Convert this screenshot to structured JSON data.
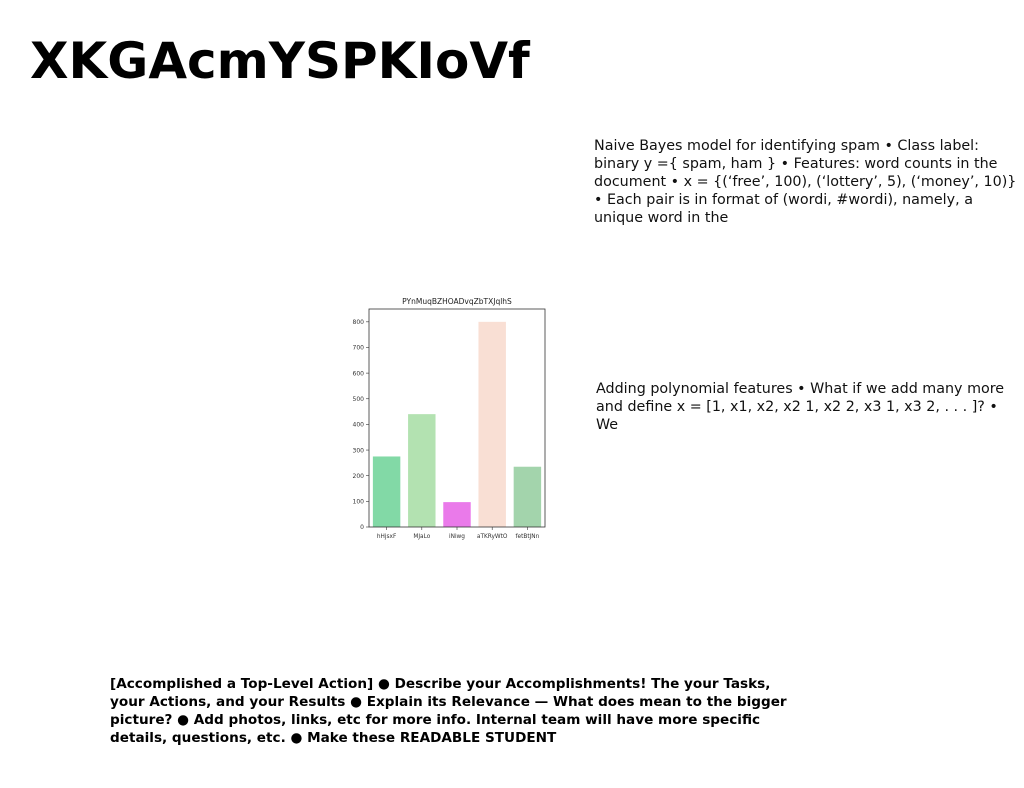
{
  "title": "XKGAcmYSPKIoVf",
  "paragraphs": {
    "naive_bayes": "Naive Bayes model for identifying spam • Class label: binary y ={ spam, ham } • Features: word counts in the document • x = {(‘free’, 100), (‘lottery’, 5), (‘money’, 10)} • Each pair is in format of (wordi, #wordi), namely, a unique word in the",
    "polynomial": "Adding polynomial features • What if we add many more and define x = [1, x1, x2, x2 1, x2 2, x3 1, x3 2, . . . ]? • We",
    "accomplishment": "[Accomplished a Top-Level Action] ● Describe your Accomplishments! The your Tasks, your Actions, and your Results ● Explain its Relevance — What does mean to the bigger picture? ● Add photos, links, etc for more info. Internal team will have more specific details, questions, etc. ● Make these READABLE STUDENT"
  },
  "chart_data": {
    "type": "bar",
    "title": "PYnMuqBZHOADvqZbTXJqlhS",
    "categories": [
      "hHjsxF",
      "MJaLo",
      "iNiwg",
      "aTKRyWtO",
      "fetBtJNn"
    ],
    "values": [
      275,
      440,
      97,
      800,
      235
    ],
    "colors": [
      "#82d9a6",
      "#b3e2b1",
      "#ea7aea",
      "#f9dfd4",
      "#a3d4ac"
    ],
    "ylim": [
      0,
      850
    ],
    "yticks": [
      0,
      100,
      200,
      300,
      400,
      500,
      600,
      700,
      800
    ],
    "xlabel": "",
    "ylabel": "",
    "grid": false,
    "legend": "none"
  }
}
